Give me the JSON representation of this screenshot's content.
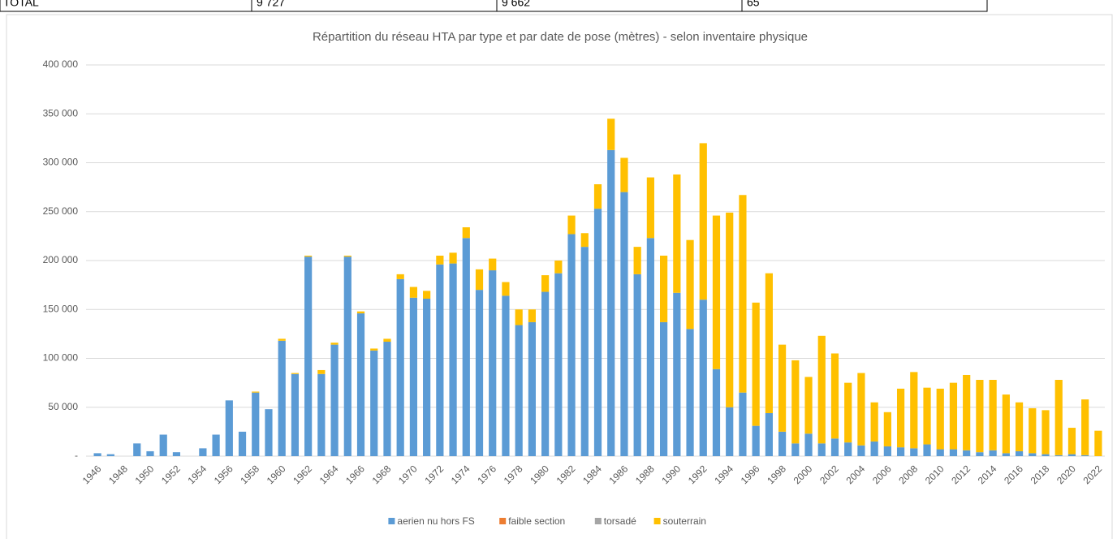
{
  "table": {
    "rows": [
      [
        "TOTAL",
        "9 727",
        "9 662",
        "65"
      ]
    ]
  },
  "chart_data": {
    "type": "stacked_bar",
    "title": "Répartition du réseau HTA par type et par date de pose (mètres) - selon inventaire physique",
    "categories": [
      "1946",
      null,
      "1948",
      null,
      "1950",
      null,
      "1952",
      null,
      "1954",
      null,
      "1956",
      null,
      "1958",
      null,
      "1960",
      null,
      "1962",
      null,
      "1964",
      null,
      "1966",
      null,
      "1968",
      null,
      "1970",
      null,
      "1972",
      null,
      "1974",
      null,
      "1976",
      null,
      "1978",
      null,
      "1980",
      null,
      "1982",
      null,
      "1984",
      null,
      "1986",
      null,
      "1988",
      null,
      "1990",
      null,
      "1992",
      null,
      "1994",
      null,
      "1996",
      null,
      "1998",
      null,
      "2000",
      null,
      "2002",
      null,
      "2004",
      null,
      "2006",
      null,
      "2008",
      null,
      "2010",
      null,
      "2012",
      null,
      "2014",
      null,
      "2016",
      null,
      "2018",
      null,
      "2020",
      null,
      "2022"
    ],
    "series": [
      {
        "name": "aerien nu hors FS",
        "color": "#5b9bd5",
        "values": [
          3000,
          2000,
          0,
          13000,
          5000,
          22000,
          4000,
          0,
          8000,
          22000,
          57000,
          25000,
          65000,
          48000,
          118000,
          84000,
          204000,
          84000,
          114000,
          204000,
          146000,
          108000,
          117000,
          181000,
          162000,
          161000,
          196000,
          197000,
          223000,
          170000,
          190000,
          164000,
          134000,
          137000,
          168000,
          187000,
          227000,
          214000,
          253000,
          313000,
          270000,
          186000,
          223000,
          137000,
          167000,
          130000,
          160000,
          89000,
          50000,
          65000,
          31000,
          44000,
          25000,
          13000,
          23000,
          13000,
          18000,
          14000,
          11000,
          15000,
          10000,
          9000,
          8000,
          12000,
          7000,
          7000,
          6000,
          4000,
          6000,
          3000,
          5000,
          3000,
          2000,
          1000,
          2000,
          1000,
          0
        ]
      },
      {
        "name": "faible section",
        "color": "#ed7d31",
        "values": [
          0,
          0,
          0,
          0,
          0,
          0,
          0,
          0,
          0,
          0,
          0,
          0,
          0,
          0,
          0,
          0,
          0,
          0,
          0,
          0,
          0,
          0,
          0,
          0,
          0,
          0,
          0,
          0,
          0,
          0,
          0,
          0,
          0,
          0,
          0,
          0,
          0,
          0,
          0,
          0,
          0,
          0,
          0,
          0,
          0,
          0,
          0,
          0,
          0,
          0,
          0,
          0,
          0,
          0,
          0,
          0,
          0,
          0,
          0,
          0,
          0,
          0,
          0,
          0,
          0,
          0,
          0,
          0,
          0,
          0,
          0,
          0,
          0,
          0,
          0,
          0,
          0
        ]
      },
      {
        "name": "torsadé",
        "color": "#a5a5a5",
        "values": [
          0,
          0,
          0,
          0,
          0,
          0,
          0,
          0,
          0,
          0,
          0,
          0,
          0,
          0,
          0,
          0,
          0,
          0,
          0,
          0,
          0,
          0,
          0,
          0,
          0,
          0,
          0,
          0,
          0,
          0,
          0,
          0,
          0,
          0,
          0,
          0,
          0,
          0,
          0,
          0,
          0,
          0,
          0,
          0,
          0,
          0,
          0,
          0,
          0,
          0,
          0,
          0,
          0,
          0,
          0,
          0,
          0,
          0,
          0,
          0,
          0,
          0,
          0,
          0,
          0,
          0,
          0,
          0,
          0,
          0,
          0,
          0,
          0,
          0,
          0,
          0,
          0
        ]
      },
      {
        "name": "souterrain",
        "color": "#ffc000",
        "values": [
          0,
          0,
          0,
          0,
          0,
          0,
          0,
          0,
          0,
          0,
          0,
          0,
          1000,
          0,
          2000,
          1000,
          1000,
          4000,
          2000,
          1000,
          2000,
          2000,
          3000,
          5000,
          11000,
          8000,
          9000,
          11000,
          11000,
          21000,
          12000,
          14000,
          16000,
          13000,
          17000,
          13000,
          19000,
          14000,
          25000,
          32000,
          35000,
          28000,
          62000,
          68000,
          121000,
          91000,
          160000,
          157000,
          199000,
          202000,
          126000,
          143000,
          89000,
          85000,
          58000,
          110000,
          87000,
          61000,
          74000,
          40000,
          35000,
          60000,
          78000,
          58000,
          62000,
          68000,
          77000,
          74000,
          72000,
          60000,
          50000,
          46000,
          45000,
          77000,
          27000,
          57000,
          26000
        ]
      }
    ],
    "ylim": [
      0,
      400000
    ],
    "yticks": [
      {
        "value": 0,
        "label": "-"
      },
      {
        "value": 50000,
        "label": "50 000"
      },
      {
        "value": 100000,
        "label": "100 000"
      },
      {
        "value": 150000,
        "label": "150 000"
      },
      {
        "value": 200000,
        "label": "200 000"
      },
      {
        "value": 250000,
        "label": "250 000"
      },
      {
        "value": 300000,
        "label": "300 000"
      },
      {
        "value": 350000,
        "label": "350 000"
      },
      {
        "value": 400000,
        "label": "400 000"
      }
    ],
    "grid": true,
    "legend": "bottom"
  }
}
